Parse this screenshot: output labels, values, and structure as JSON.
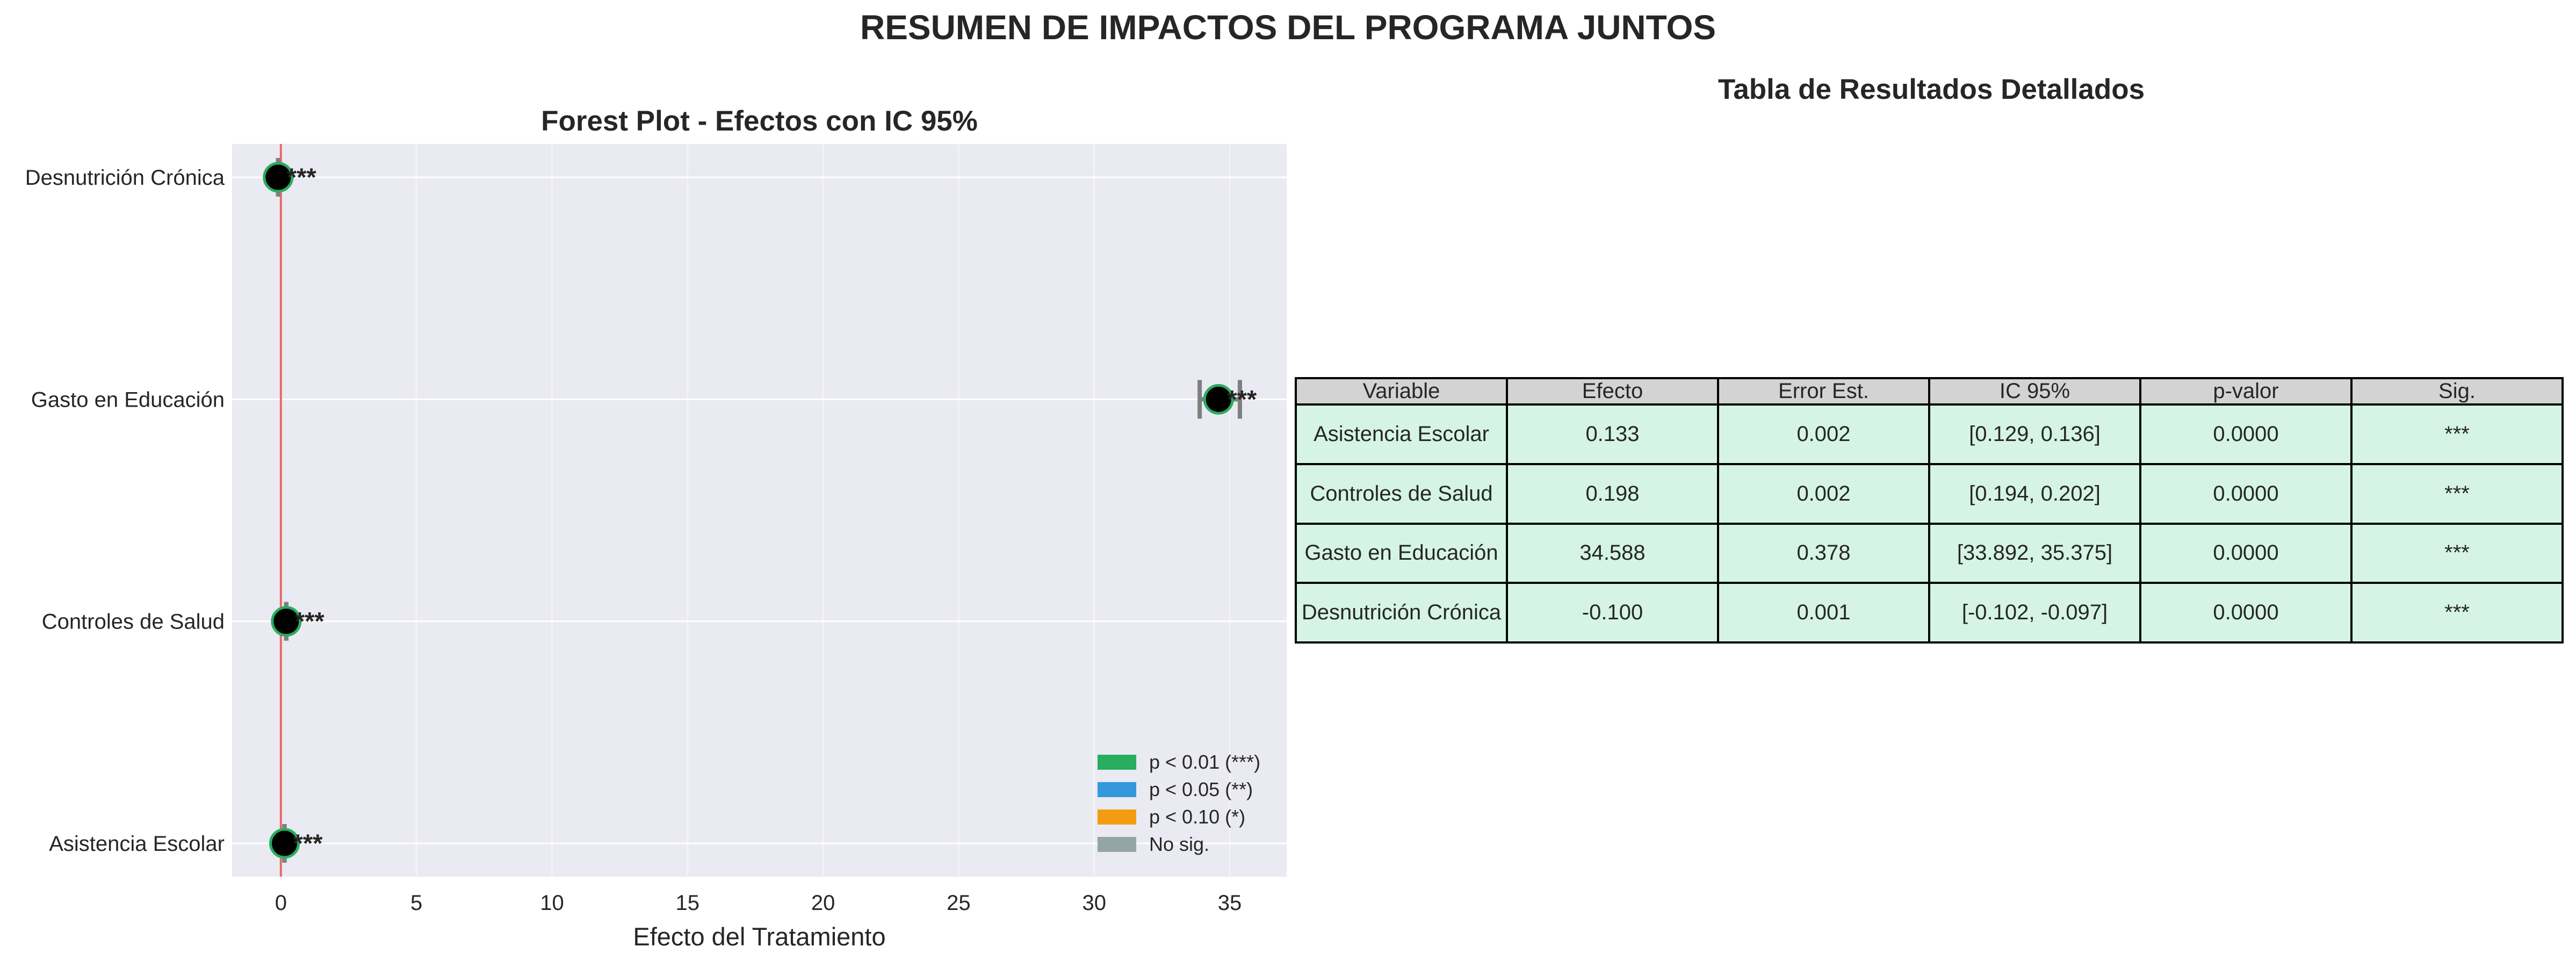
{
  "suptitle": "RESUMEN DE IMPACTOS DEL PROGRAMA JUNTOS",
  "chart_data": [
    {
      "type": "scatter",
      "title": "Forest Plot - Efectos con IC 95%",
      "xlabel": "Efecto del Tratamiento",
      "ylabel": "",
      "xlim": [
        -1.8,
        37.1
      ],
      "xticks": [
        0,
        5,
        10,
        15,
        20,
        25,
        30,
        35
      ],
      "grid": true,
      "reference_line": {
        "x": 0,
        "color": "#e86a6a"
      },
      "categories": [
        "Asistencia Escolar",
        "Controles de Salud",
        "Gasto en Educación",
        "Desnutrición Crónica"
      ],
      "series": [
        {
          "values": [
            0.133,
            0.198,
            34.588,
            -0.1
          ],
          "ci_low": [
            0.129,
            0.194,
            33.892,
            -0.102
          ],
          "ci_high": [
            0.136,
            0.202,
            35.375,
            -0.097
          ],
          "labels": [
            "***",
            "***",
            "***",
            "***"
          ],
          "color": "#000000",
          "edge_color": "#27ae60"
        }
      ],
      "legend": {
        "position": "lower-right",
        "items": [
          {
            "label": "p < 0.01 (***)",
            "color": "#27ae60"
          },
          {
            "label": "p < 0.05 (**)",
            "color": "#3498db"
          },
          {
            "label": "p < 0.10 (*)",
            "color": "#f39c12"
          },
          {
            "label": "No sig.",
            "color": "#95a5a6"
          }
        ]
      }
    },
    {
      "type": "table",
      "title": "Tabla de Resultados Detallados",
      "header_color": "#d3d3d3",
      "row_color": "#d5f4e6",
      "columns": [
        "Variable",
        "Efecto",
        "Error Est.",
        "IC 95%",
        "p-valor",
        "Sig."
      ],
      "rows": [
        [
          "Asistencia Escolar",
          "0.133",
          "0.002",
          "[0.129, 0.136]",
          "0.0000",
          "***"
        ],
        [
          "Controles de Salud",
          "0.198",
          "0.002",
          "[0.194, 0.202]",
          "0.0000",
          "***"
        ],
        [
          "Gasto en Educación",
          "34.588",
          "0.378",
          "[33.892, 35.375]",
          "0.0000",
          "***"
        ],
        [
          "Desnutrición Crónica",
          "-0.100",
          "0.001",
          "[-0.102, -0.097]",
          "0.0000",
          "***"
        ]
      ]
    }
  ]
}
